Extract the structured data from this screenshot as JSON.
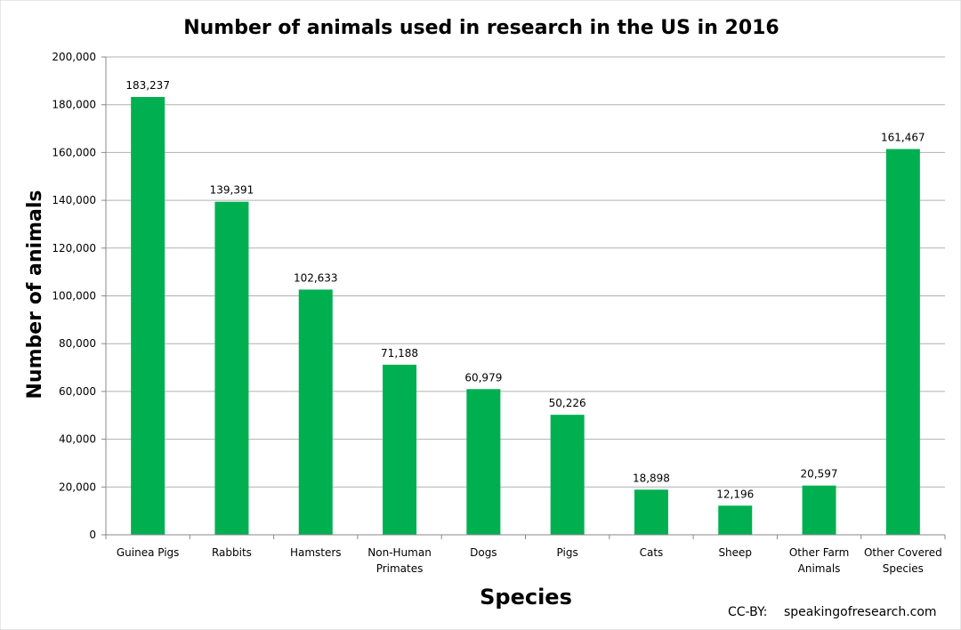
{
  "chart_data": {
    "type": "bar",
    "title": "Number of animals used in research in the US in 2016",
    "xlabel": "Species",
    "ylabel": "Number of animals",
    "categories": [
      [
        "Guinea Pigs"
      ],
      [
        "Rabbits"
      ],
      [
        "Hamsters"
      ],
      [
        "Non-Human",
        "Primates"
      ],
      [
        "Dogs"
      ],
      [
        "Pigs"
      ],
      [
        "Cats"
      ],
      [
        "Sheep"
      ],
      [
        "Other Farm",
        "Animals"
      ],
      [
        "Other Covered",
        "Species"
      ]
    ],
    "values": [
      183237,
      139391,
      102633,
      71188,
      60979,
      50226,
      18898,
      12196,
      20597,
      161467
    ],
    "data_labels": [
      "183,237",
      "139,391",
      "102,633",
      "71,188",
      "60,979",
      "50,226",
      "18,898",
      "12,196",
      "20,597",
      "161,467"
    ],
    "ylim": [
      0,
      200000
    ],
    "yticks": [
      0,
      20000,
      40000,
      60000,
      80000,
      100000,
      120000,
      140000,
      160000,
      180000,
      200000
    ],
    "ytick_labels": [
      "0",
      "20,000",
      "40,000",
      "60,000",
      "80,000",
      "100,000",
      "120,000",
      "140,000",
      "160,000",
      "180,000",
      "200,000"
    ],
    "grid": true,
    "bar_color": "#00b050",
    "gridline_color": "#b0b0b0"
  },
  "credit": {
    "label": "CC-BY:",
    "source": "speakingofresearch.com"
  }
}
